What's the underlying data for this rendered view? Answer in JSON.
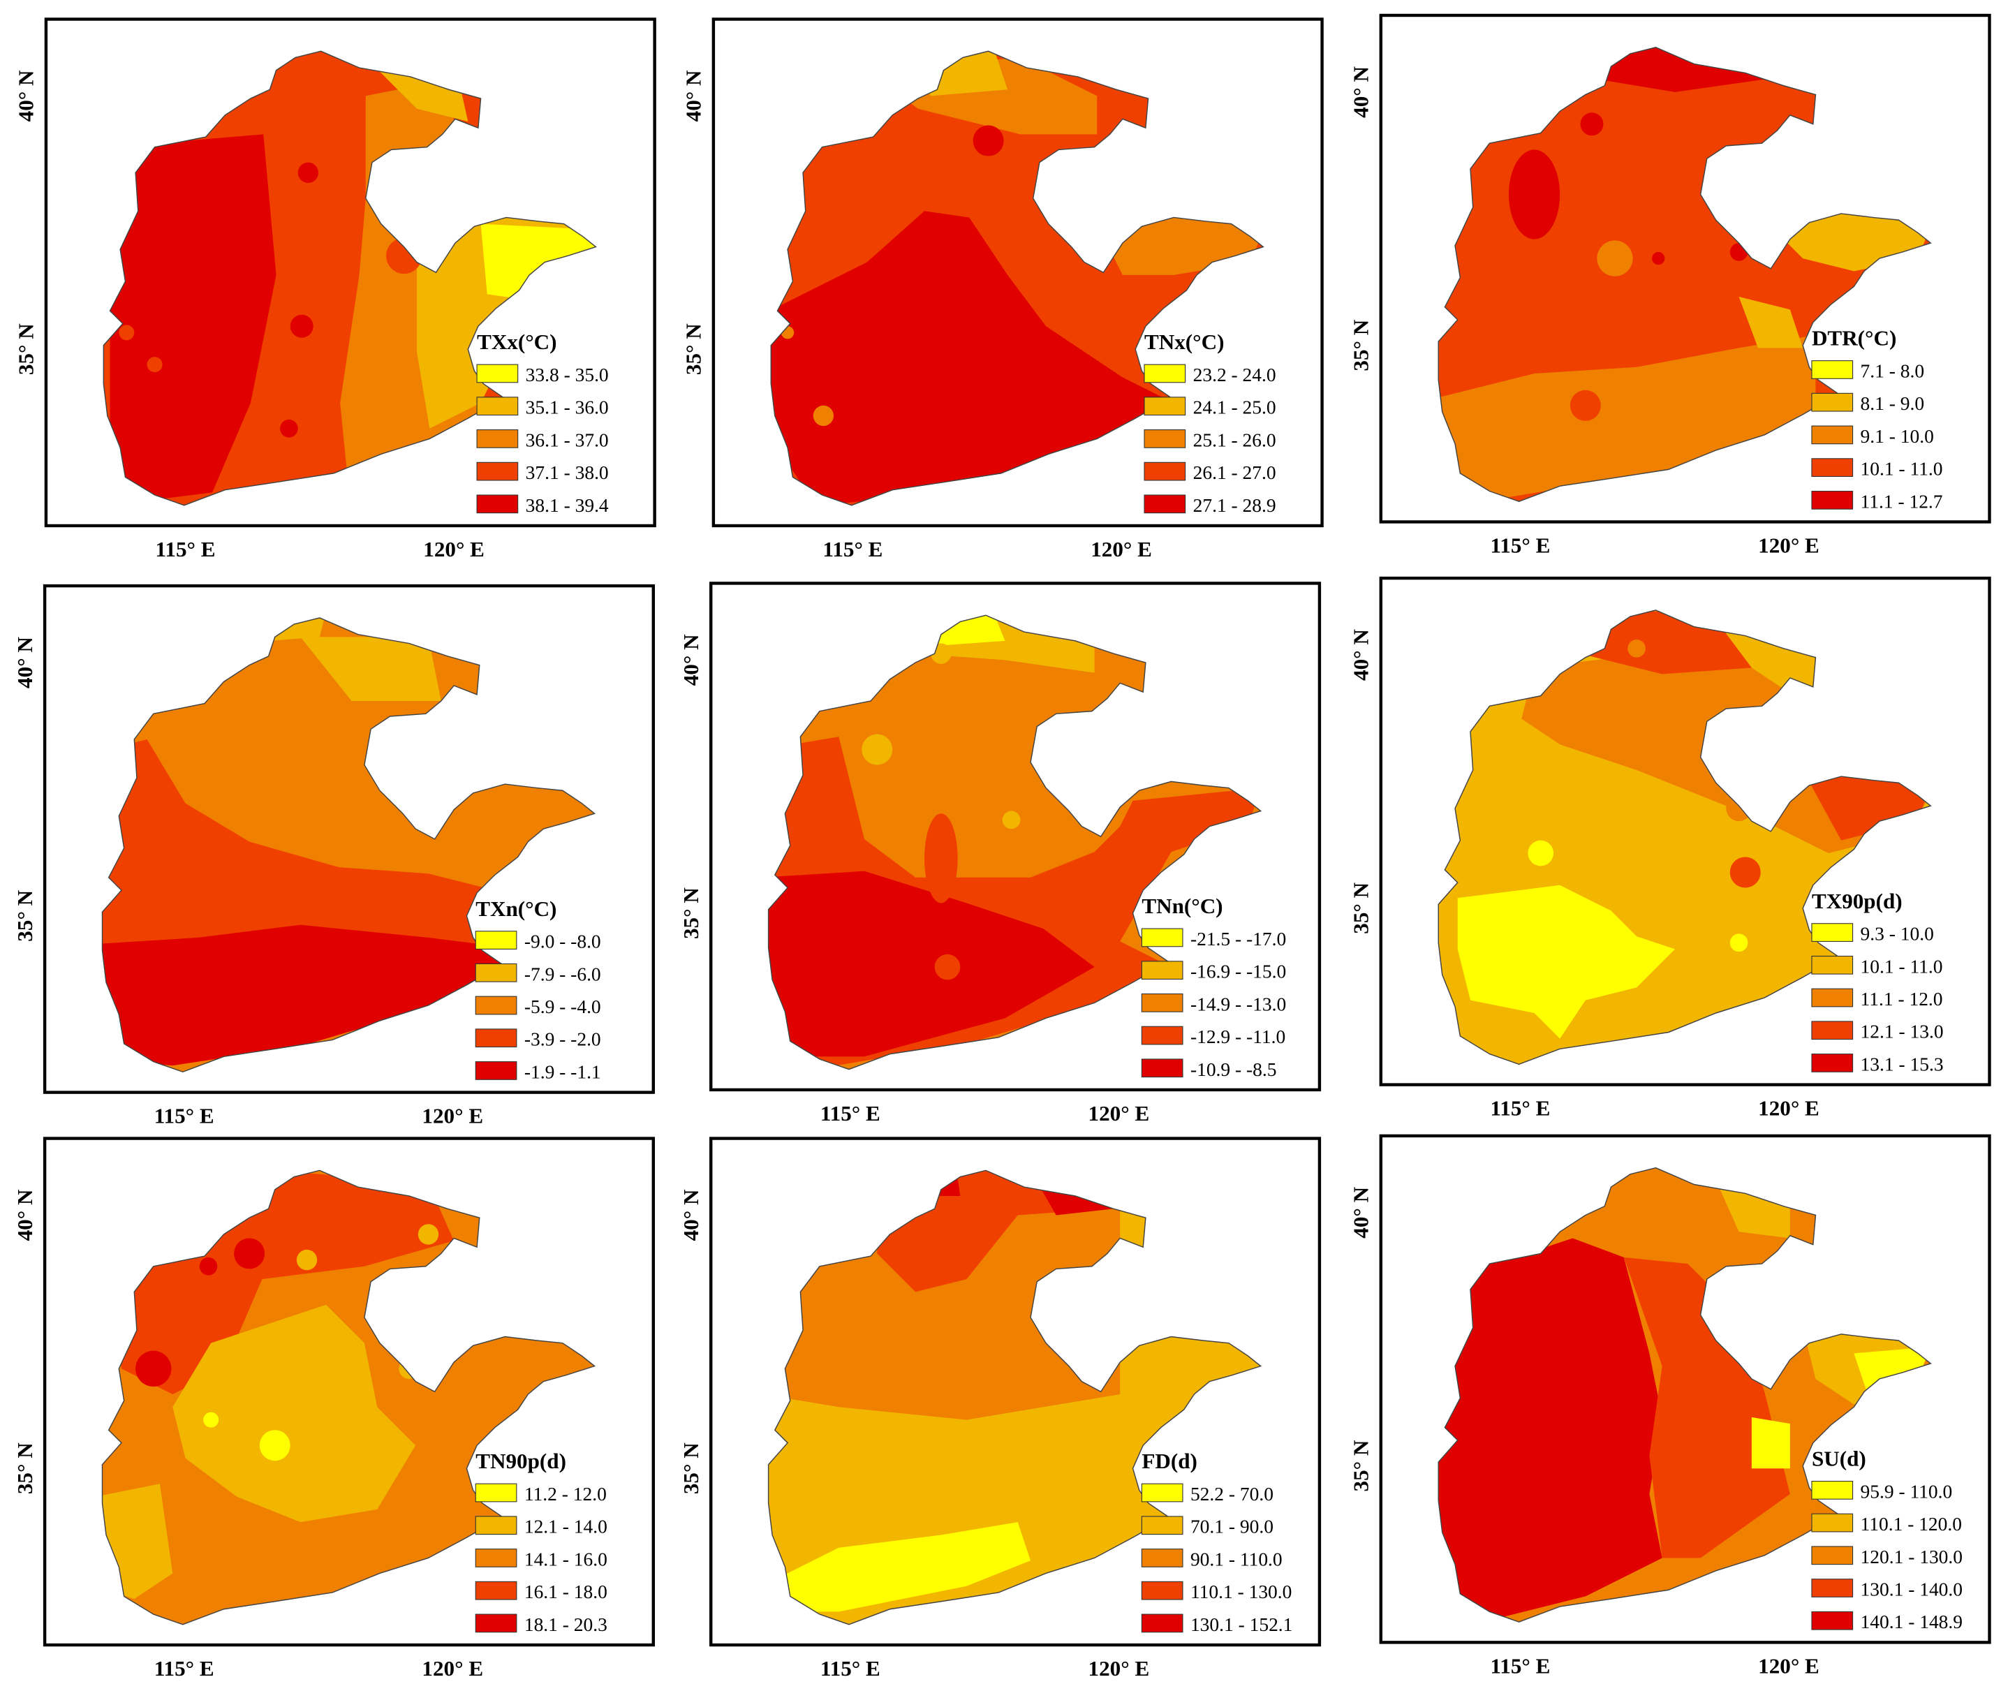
{
  "figure": {
    "colors": [
      "#ffff00",
      "#f2b500",
      "#f08000",
      "#f04000",
      "#e00000"
    ],
    "panels": [
      {
        "id": "txx",
        "title": "TXx(°C)",
        "ticks_x": [
          "115° E",
          "120° E"
        ],
        "ticks_y": [
          "40° N",
          "35° N"
        ],
        "classes": [
          "33.8 - 35.0",
          "35.1 - 36.0",
          "36.1 - 37.0",
          "37.1 - 38.0",
          "38.1 - 39.4"
        ]
      },
      {
        "id": "tnx",
        "title": "TNx(°C)",
        "ticks_x": [
          "115° E",
          "120° E"
        ],
        "ticks_y": [
          "40° N",
          "35° N"
        ],
        "classes": [
          "23.2 - 24.0",
          "24.1 - 25.0",
          "25.1 - 26.0",
          "26.1 - 27.0",
          "27.1 - 28.9"
        ]
      },
      {
        "id": "dtr",
        "title": "DTR(°C)",
        "ticks_x": [
          "115° E",
          "120° E"
        ],
        "ticks_y": [
          "40° N",
          "35° N"
        ],
        "classes": [
          "7.1 - 8.0",
          "8.1 - 9.0",
          "9.1 - 10.0",
          "10.1 - 11.0",
          "11.1 - 12.7"
        ]
      },
      {
        "id": "txn",
        "title": "TXn(°C)",
        "ticks_x": [
          "115° E",
          "120° E"
        ],
        "ticks_y": [
          "40° N",
          "35° N"
        ],
        "classes": [
          "-9.0 - -8.0",
          "-7.9 - -6.0",
          "-5.9 - -4.0",
          "-3.9 - -2.0",
          "-1.9 - -1.1"
        ]
      },
      {
        "id": "tnn",
        "title": "TNn(°C)",
        "ticks_x": [
          "115° E",
          "120° E"
        ],
        "ticks_y": [
          "40° N",
          "35° N"
        ],
        "classes": [
          "-21.5 - -17.0",
          "-16.9 - -15.0",
          "-14.9 - -13.0",
          "-12.9 - -11.0",
          "-10.9 - -8.5"
        ]
      },
      {
        "id": "tx90p",
        "title": "TX90p(d)",
        "ticks_x": [
          "115° E",
          "120° E"
        ],
        "ticks_y": [
          "40° N",
          "35° N"
        ],
        "classes": [
          "9.3 - 10.0",
          "10.1 - 11.0",
          "11.1 - 12.0",
          "12.1 - 13.0",
          "13.1 - 15.3"
        ]
      },
      {
        "id": "tn90p",
        "title": "TN90p(d)",
        "ticks_x": [
          "115° E",
          "120° E"
        ],
        "ticks_y": [
          "40° N",
          "35° N"
        ],
        "classes": [
          "11.2 - 12.0",
          "12.1 - 14.0",
          "14.1 - 16.0",
          "16.1 - 18.0",
          "18.1 - 20.3"
        ]
      },
      {
        "id": "fd",
        "title": "FD(d)",
        "ticks_x": [
          "115° E",
          "120° E"
        ],
        "ticks_y": [
          "40° N",
          "35° N"
        ],
        "classes": [
          "52.2 - 70.0",
          "70.1 - 90.0",
          "90.1 - 110.0",
          "110.1 - 130.0",
          "130.1 - 152.1"
        ]
      },
      {
        "id": "su",
        "title": "SU(d)",
        "ticks_x": [
          "115° E",
          "120° E"
        ],
        "ticks_y": [
          "40° N",
          "35° N"
        ],
        "classes": [
          "95.9 - 110.0",
          "110.1 - 120.0",
          "120.1 - 130.0",
          "130.1 - 140.0",
          "140.1 - 148.9"
        ]
      }
    ]
  }
}
